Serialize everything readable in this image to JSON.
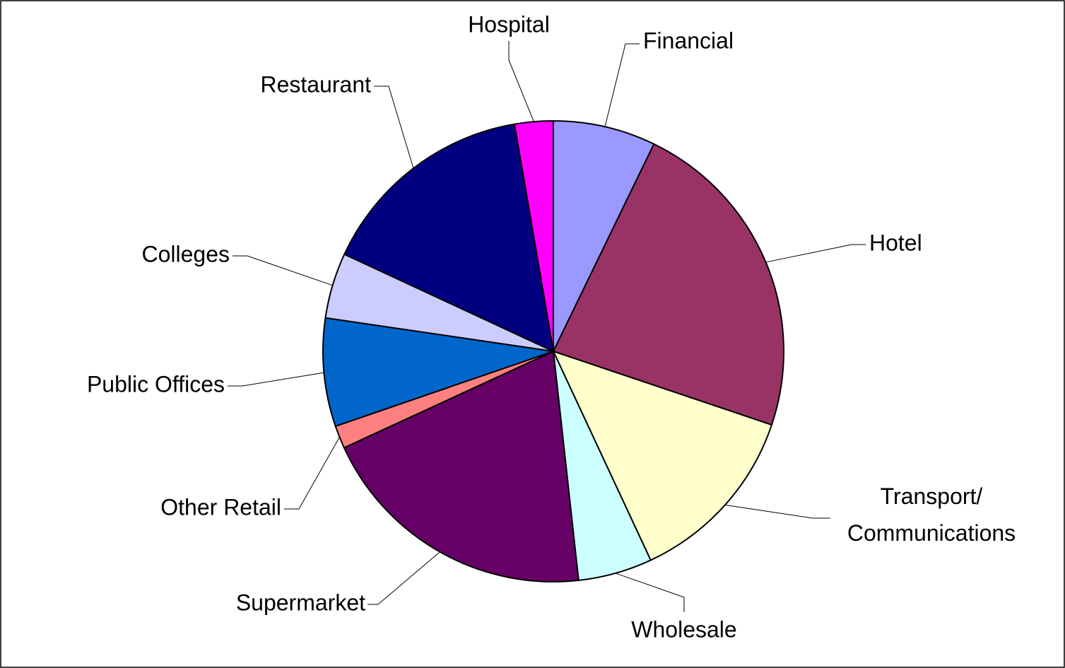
{
  "chart_data": {
    "type": "pie",
    "categories": [
      "Financial",
      "Hotel",
      "Transport/\nCommunications",
      "Wholesale",
      "Supermarket",
      "Other Retail",
      "Public Offices",
      "Colleges",
      "Restaurant",
      "Hospital"
    ],
    "values": [
      7.2,
      23.0,
      12.9,
      5.2,
      19.9,
      1.6,
      7.6,
      4.6,
      15.4,
      2.7
    ],
    "colors": [
      "#9999ff",
      "#993366",
      "#ffffcc",
      "#ccffff",
      "#660066",
      "#ff8080",
      "#0066cc",
      "#ccccff",
      "#000080",
      "#ff00ff"
    ]
  }
}
